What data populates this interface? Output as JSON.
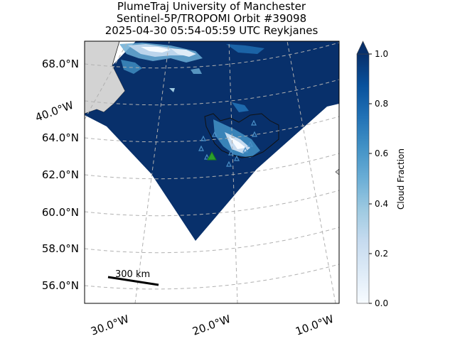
{
  "title": {
    "line1": "PlumeTraj    University of Manchester",
    "line2": "Sentinel-5P/TROPOMI Orbit #39098",
    "line3": "2025-04-30    05:54-05:59 UTC    Reykjanes"
  },
  "chart_data": {
    "type": "heatmap",
    "projection": "map",
    "lat_ticks": [
      "56.0°N",
      "58.0°N",
      "60.0°N",
      "62.0°N",
      "64.0°N",
      "68.0°N"
    ],
    "lon_ticks_left": [
      "40.0°W"
    ],
    "lon_ticks_bottom": [
      "30.0°W",
      "20.0°W",
      "10.0°W"
    ],
    "scale_bar": "300 km",
    "colorbar": {
      "label": "Cloud Fraction",
      "ticks": [
        "0.0",
        "0.2",
        "0.4",
        "0.6",
        "0.8",
        "1.0"
      ],
      "range": [
        0.0,
        1.0
      ],
      "extend": "max",
      "colormap": "Blues"
    },
    "markers": {
      "volcano": {
        "lat": 63.9,
        "lon": -22.4,
        "symbol": "triangle",
        "color": "#2ca02c"
      },
      "other_volcanoes_color": "#4a90c8"
    },
    "colors": {
      "swath": "#08306b",
      "land": "#d3d3d3",
      "grid": "#b0b0b0"
    }
  }
}
